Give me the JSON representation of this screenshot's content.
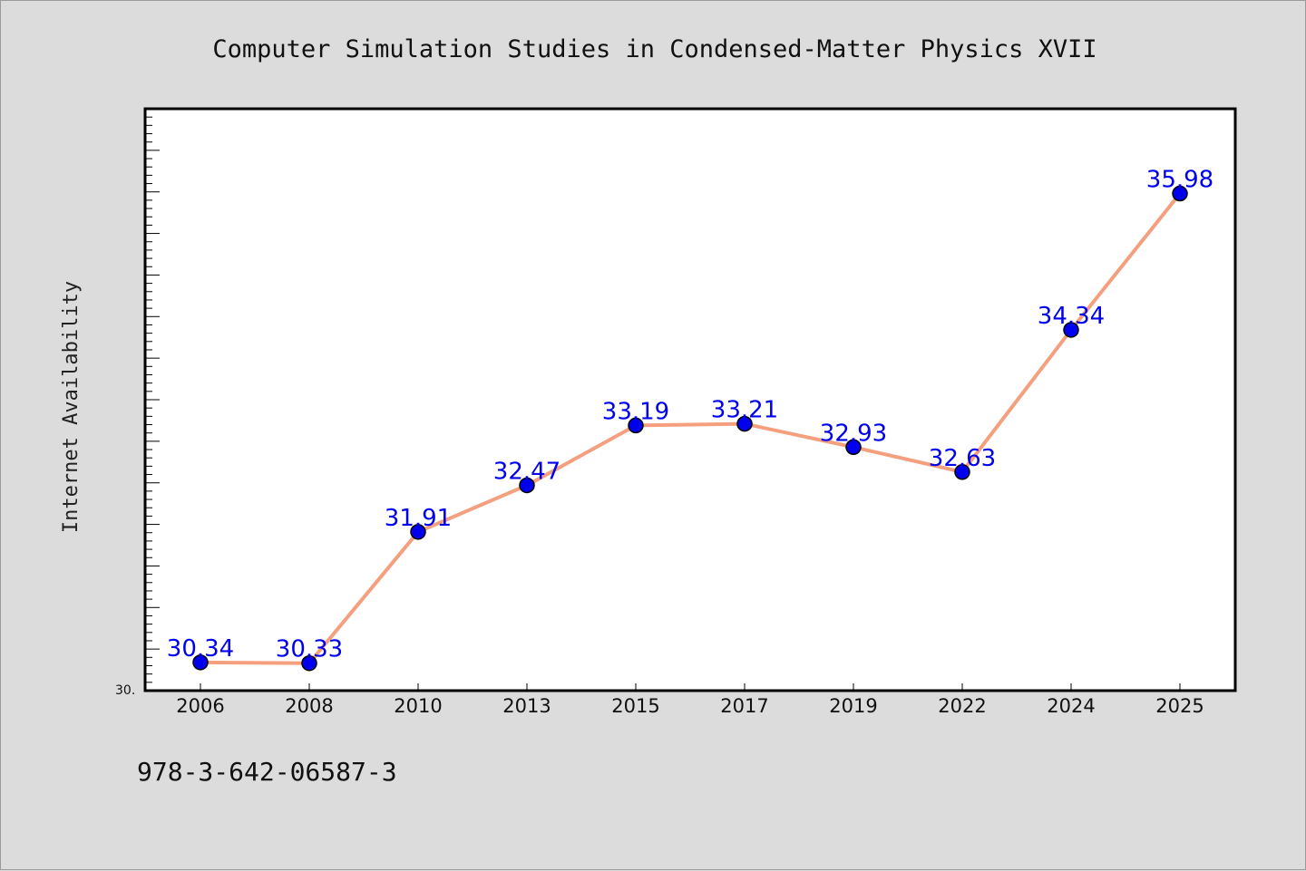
{
  "chart_data": {
    "type": "line",
    "title": "Computer Simulation Studies in Condensed-Matter Physics XVII",
    "xlabel": "",
    "ylabel": "Internet Availability",
    "categories": [
      "2006",
      "2008",
      "2010",
      "2013",
      "2015",
      "2017",
      "2019",
      "2022",
      "2024",
      "2025"
    ],
    "series": [
      {
        "values": [
          30.34,
          30.33,
          31.91,
          32.47,
          33.19,
          33.21,
          32.93,
          32.63,
          34.34,
          35.98
        ]
      }
    ],
    "data_labels": [
      "30.34",
      "30.33",
      "31.91",
      "32.47",
      "33.19",
      "33.21",
      "32.93",
      "32.63",
      "34.34",
      "35.98"
    ],
    "ylim": [
      30.0,
      37.0
    ],
    "y_min_label": "30.",
    "grid": false,
    "line_color": "#f4a07f",
    "marker_color": "#0000ee"
  },
  "footer": {
    "isbn": "978-3-642-06587-3"
  }
}
